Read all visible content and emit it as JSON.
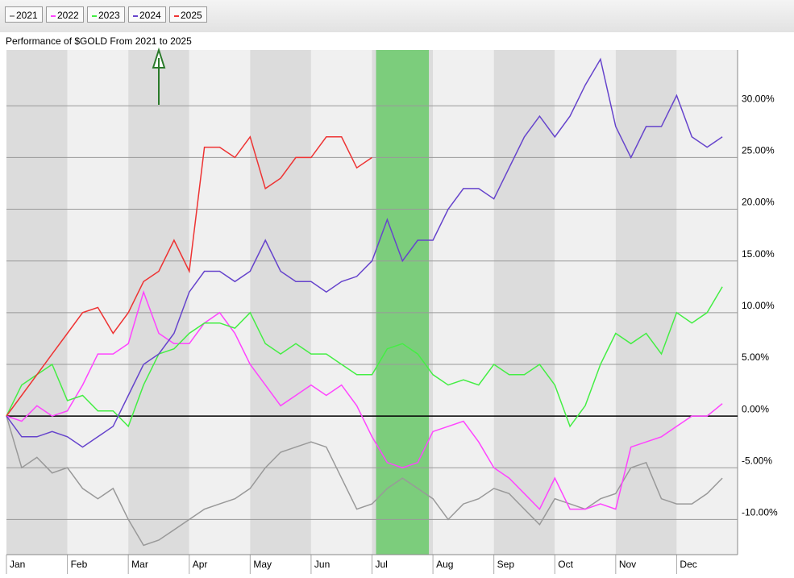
{
  "chart_data": {
    "type": "line",
    "title": "Performance of $GOLD From 2021 to 2025",
    "categories": [
      "Jan",
      null,
      null,
      null,
      "Feb",
      null,
      null,
      null,
      "Mar",
      null,
      null,
      null,
      "Apr",
      null,
      null,
      null,
      "May",
      null,
      null,
      null,
      "Jun",
      null,
      null,
      null,
      "Jul",
      null,
      null,
      null,
      "Aug",
      null,
      null,
      null,
      "Sep",
      null,
      null,
      null,
      "Oct",
      null,
      null,
      null,
      "Nov",
      null,
      null,
      null,
      "Dec",
      null,
      null,
      null
    ],
    "series": [
      {
        "name": "2021",
        "color": "#999999",
        "values": [
          0,
          -5,
          -4,
          -5.5,
          -5,
          -7,
          -8,
          -7,
          -10,
          -12.5,
          -12,
          -11,
          -10,
          -9,
          -8.5,
          -8,
          -7,
          -5,
          -3.5,
          -3,
          -2.5,
          -3,
          -6,
          -9,
          -8.5,
          -7,
          -6,
          -7,
          -8,
          -10,
          -8.5,
          -8,
          -7,
          -7.5,
          -9,
          -10.5,
          -8,
          -8.5,
          -9,
          -8,
          -7.5,
          -5,
          -4.5,
          -8,
          -8.5,
          -8.5,
          -7.5,
          -6
        ]
      },
      {
        "name": "2022",
        "color": "#ff44ff",
        "values": [
          0,
          -0.5,
          1,
          0,
          0.5,
          3,
          6,
          6,
          7,
          12,
          8,
          7,
          7,
          9,
          10,
          8,
          5,
          3,
          1,
          2,
          3,
          2,
          3,
          1,
          -2,
          -4.5,
          -5,
          -4.5,
          -1.5,
          -1,
          -0.5,
          -2.5,
          -5,
          -6,
          -7.5,
          -9,
          -6,
          -9,
          -9,
          -8.5,
          -9,
          -3,
          -2.5,
          -2,
          -1,
          0,
          0,
          1.2
        ]
      },
      {
        "name": "2023",
        "color": "#44ee44",
        "values": [
          0,
          3,
          4,
          5,
          1.5,
          2,
          0.5,
          0.5,
          -1,
          3,
          6,
          6.5,
          8,
          9,
          9,
          8.5,
          10,
          7,
          6,
          7,
          6,
          6,
          5,
          4,
          4,
          6.5,
          7,
          6,
          4,
          3,
          3.5,
          3,
          5,
          4,
          4,
          5,
          3,
          -1,
          1,
          5,
          8,
          7,
          8,
          6,
          10,
          9,
          10,
          12.5
        ]
      },
      {
        "name": "2024",
        "color": "#6644cc",
        "values": [
          0,
          -2,
          -2,
          -1.5,
          -2,
          -3,
          -2,
          -1,
          2,
          5,
          6,
          8,
          12,
          14,
          14,
          13,
          14,
          17,
          14,
          13,
          13,
          12,
          13,
          13.5,
          15,
          19,
          15,
          17,
          17,
          20,
          22,
          22,
          21,
          24,
          27,
          29,
          27,
          29,
          32,
          34.5,
          28,
          25,
          28,
          28,
          31,
          27,
          26,
          27
        ]
      },
      {
        "name": "2025",
        "color": "#ee3333",
        "values": [
          0,
          2,
          4,
          6,
          8,
          10,
          10.5,
          8,
          10,
          13,
          14,
          17,
          14,
          26,
          26,
          25,
          27,
          22,
          23,
          25,
          25,
          27,
          27,
          24,
          25,
          null,
          null,
          null,
          null,
          null,
          null,
          null,
          null,
          null,
          null,
          null,
          null,
          null,
          null,
          null,
          null,
          null,
          null,
          null,
          null,
          null,
          null,
          null
        ]
      }
    ],
    "ylim": [
      -13.4,
      35.4
    ],
    "yticks": [
      {
        "value": -10,
        "label": "-10.00%"
      },
      {
        "value": -5,
        "label": "-5.00%"
      },
      {
        "value": 0,
        "label": "0.00%"
      },
      {
        "value": 5,
        "label": "5.00%"
      },
      {
        "value": 10,
        "label": "10.00%"
      },
      {
        "value": 15,
        "label": "15.00%"
      },
      {
        "value": 20,
        "label": "20.00%"
      },
      {
        "value": 25,
        "label": "25.00%"
      },
      {
        "value": 30,
        "label": "30.00%"
      }
    ],
    "grid": true
  }
}
